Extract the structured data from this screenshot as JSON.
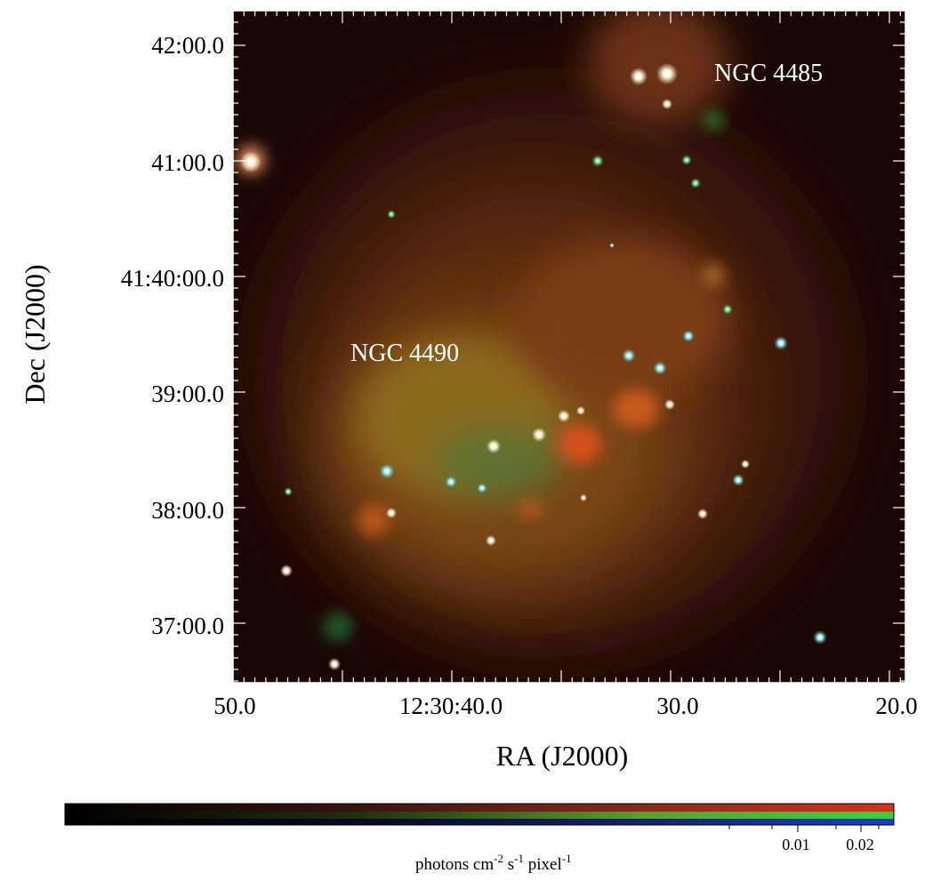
{
  "image": {
    "annotations": [
      "NGC 4485",
      "NGC 4490"
    ]
  },
  "axes": {
    "x_title": "RA (J2000)",
    "y_title": "Dec (J2000)",
    "x_ticks": [
      "50.0",
      "12:30:40.0",
      "30.0",
      "20.0"
    ],
    "y_ticks": [
      "42:00.0",
      "41:00.0",
      "41:40:00.0",
      "39:00.0",
      "38:00.0",
      "37:00.0"
    ]
  },
  "colorbar": {
    "ticks": [
      "0.01",
      "0.02"
    ],
    "unit": {
      "base": "photons cm",
      "exp1": "-2",
      "mid1": " s",
      "exp2": "-1",
      "mid2": " pixel",
      "exp3": "-1"
    },
    "channels": [
      "red",
      "green",
      "blue"
    ],
    "colors": {
      "red": "#c8281e",
      "green": "#28c83c",
      "blue": "#1e3cc8"
    }
  }
}
